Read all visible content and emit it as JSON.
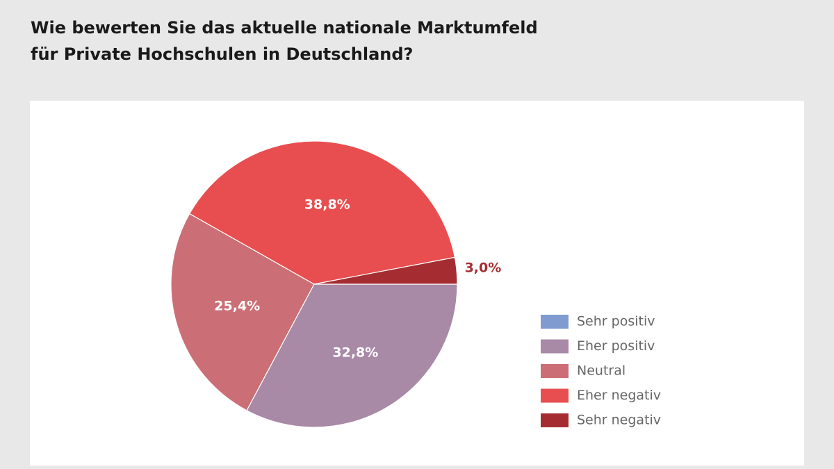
{
  "chart_data": {
    "type": "pie",
    "title": [
      "Wie bewerten Sie das aktuelle nationale Marktumfeld",
      "für Private Hochschulen in Deutschland?"
    ],
    "categories": [
      "Sehr positiv",
      "Eher positiv",
      "Neutral",
      "Eher negativ",
      "Sehr negativ"
    ],
    "values": [
      0,
      32.8,
      25.4,
      38.8,
      3.0
    ],
    "value_labels": [
      null,
      "32,8%",
      "25,4%",
      "38,8%",
      "3,0%"
    ],
    "colors": [
      "#7f9bd0",
      "#a889a6",
      "#cc6e75",
      "#e84e50",
      "#a52d31"
    ],
    "legend": "right"
  }
}
